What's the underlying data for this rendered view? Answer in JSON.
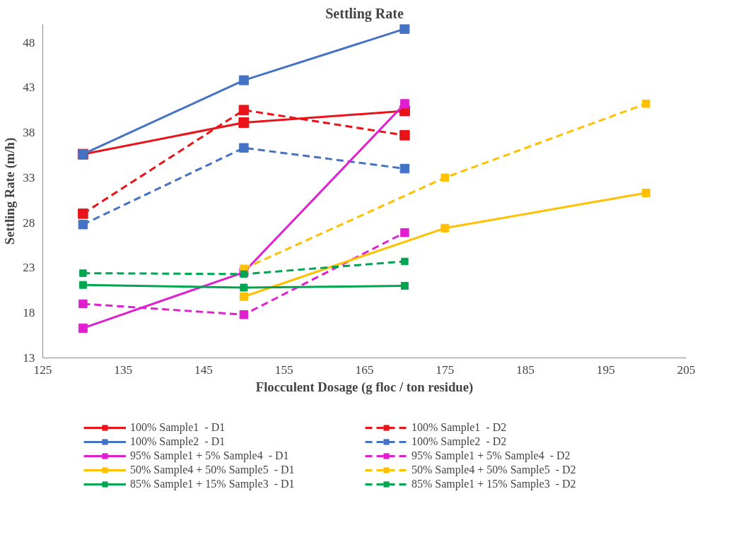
{
  "chart_data": {
    "type": "line",
    "title": "Settling Rate",
    "xlabel": "Flocculent Dosage (g floc / ton residue)",
    "ylabel": "Settling Rate (m/h)",
    "xlim": [
      125,
      205
    ],
    "xticks": [
      125,
      135,
      145,
      155,
      165,
      175,
      185,
      195,
      205
    ],
    "ylim": [
      13,
      50
    ],
    "yticks": [
      13,
      18,
      23,
      28,
      33,
      38,
      43,
      48
    ],
    "grid": false,
    "legend": "bottom",
    "marker": "square",
    "series": [
      {
        "name": "100% Sample1  - D1",
        "color": "#e8141a",
        "line_style": "solid",
        "x": [
          130,
          150,
          170
        ],
        "values": [
          35.6,
          39.1,
          40.4
        ]
      },
      {
        "name": "100% Sample1  - D2",
        "color": "#e8141a",
        "line_style": "dashed",
        "x": [
          130,
          150,
          170
        ],
        "values": [
          29.0,
          40.5,
          37.7
        ]
      },
      {
        "name": "100% Sample2  - D1",
        "color": "#4472c4",
        "line_style": "solid",
        "x": [
          130,
          150,
          170
        ],
        "values": [
          35.6,
          43.8,
          49.5
        ]
      },
      {
        "name": "100% Sample2  - D2",
        "color": "#4472c4",
        "line_style": "dashed",
        "x": [
          130,
          150,
          170
        ],
        "values": [
          27.8,
          36.3,
          34.0
        ]
      },
      {
        "name": "95% Sample1 + 5% Sample4  - D1",
        "color": "#e020d0",
        "line_style": "solid",
        "x": [
          130,
          150,
          170
        ],
        "values": [
          16.3,
          22.5,
          41.2
        ]
      },
      {
        "name": "95% Sample1 + 5% Sample4  - D2",
        "color": "#e020d0",
        "line_style": "dashed",
        "x": [
          130,
          150,
          170
        ],
        "values": [
          19.0,
          17.8,
          26.9
        ]
      },
      {
        "name": "50% Sample4 + 50% Sample5  - D1",
        "color": "#ffc000",
        "line_style": "solid",
        "x": [
          150,
          175,
          200
        ],
        "values": [
          19.8,
          27.4,
          31.3
        ]
      },
      {
        "name": "50% Sample4 + 50% Sample5  - D2",
        "color": "#ffc000",
        "line_style": "dashed",
        "x": [
          150,
          175,
          200
        ],
        "values": [
          22.9,
          33.0,
          41.2
        ]
      },
      {
        "name": "85% Sample1 + 15% Sample3  - D1",
        "color": "#00a550",
        "line_style": "solid",
        "x": [
          130,
          150,
          170
        ],
        "values": [
          21.1,
          20.8,
          21.0
        ]
      },
      {
        "name": "85% Sample1 + 15% Sample3  - D2",
        "color": "#00a550",
        "line_style": "dashed",
        "x": [
          130,
          150,
          170
        ],
        "values": [
          22.4,
          22.3,
          23.7
        ]
      }
    ]
  }
}
